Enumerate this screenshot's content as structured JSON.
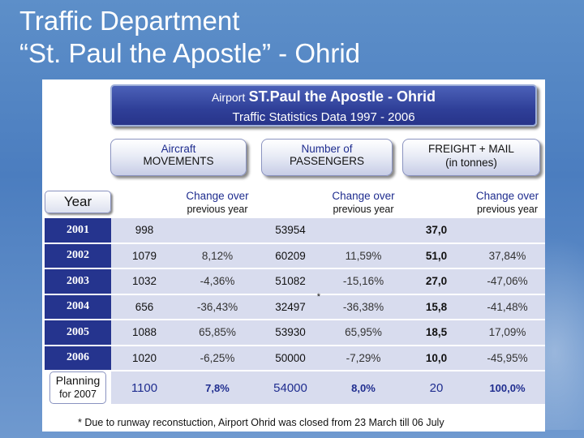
{
  "slide": {
    "title_line1": "Traffic Department",
    "title_line2": "“St. Paul the Apostle” - Ohrid"
  },
  "header": {
    "airport_label": "Airport",
    "airport_name": "ST.Paul the Apostle - Ohrid",
    "subtitle": "Traffic Statistics Data 1997 - 2006"
  },
  "groups": {
    "aircraft": {
      "line1": "Aircraft",
      "line2": "MOVEMENTS"
    },
    "passengers": {
      "line1": "Number of",
      "line2": "PASSENGERS"
    },
    "freight": {
      "line1": "FREIGHT + MAIL",
      "line2": "(in tonnes)"
    }
  },
  "columns": {
    "year": "Year",
    "change_line1": "Change over",
    "change_line2": "previous year"
  },
  "rows": [
    {
      "year": "2001",
      "movements": "998",
      "mov_change": "",
      "passengers": "53954",
      "pax_change": "",
      "freight": "37,0",
      "fr_change": ""
    },
    {
      "year": "2002",
      "movements": "1079",
      "mov_change": "8,12%",
      "passengers": "60209",
      "pax_change": "11,59%",
      "freight": "51,0",
      "fr_change": "37,84%"
    },
    {
      "year": "2003",
      "movements": "1032",
      "mov_change": "-4,36%",
      "passengers": "51082",
      "pax_change": "-15,16%",
      "freight": "27,0",
      "fr_change": "-47,06%"
    },
    {
      "year": "2004",
      "movements": "656",
      "mov_change": "-36,43%",
      "passengers": "32497",
      "pax_note": "*",
      "pax_change": "-36,38%",
      "freight": "15,8",
      "fr_change": "-41,48%"
    },
    {
      "year": "2005",
      "movements": "1088",
      "mov_change": "65,85%",
      "passengers": "53930",
      "pax_change": "65,95%",
      "freight": "18,5",
      "fr_change": "17,09%"
    },
    {
      "year": "2006",
      "movements": "1020",
      "mov_change": "-6,25%",
      "passengers": "50000",
      "pax_change": "-7,29%",
      "freight": "10,0",
      "fr_change": "-45,95%"
    }
  ],
  "planning": {
    "label_line1": "Planning",
    "label_line2": "for 2007",
    "movements": "1100",
    "mov_change": "7,8%",
    "passengers": "54000",
    "pax_change": "8,0%",
    "freight": "20",
    "fr_change": "100,0%"
  },
  "footnote": "* Due to runway reconstuction, Airport Ohrid was closed from 23 March till 06 July",
  "colors": {
    "background": "#4b7dbf",
    "header_fill": "#2f3f98",
    "year_cell": "#25348e",
    "band_light": "#d8dcee"
  }
}
